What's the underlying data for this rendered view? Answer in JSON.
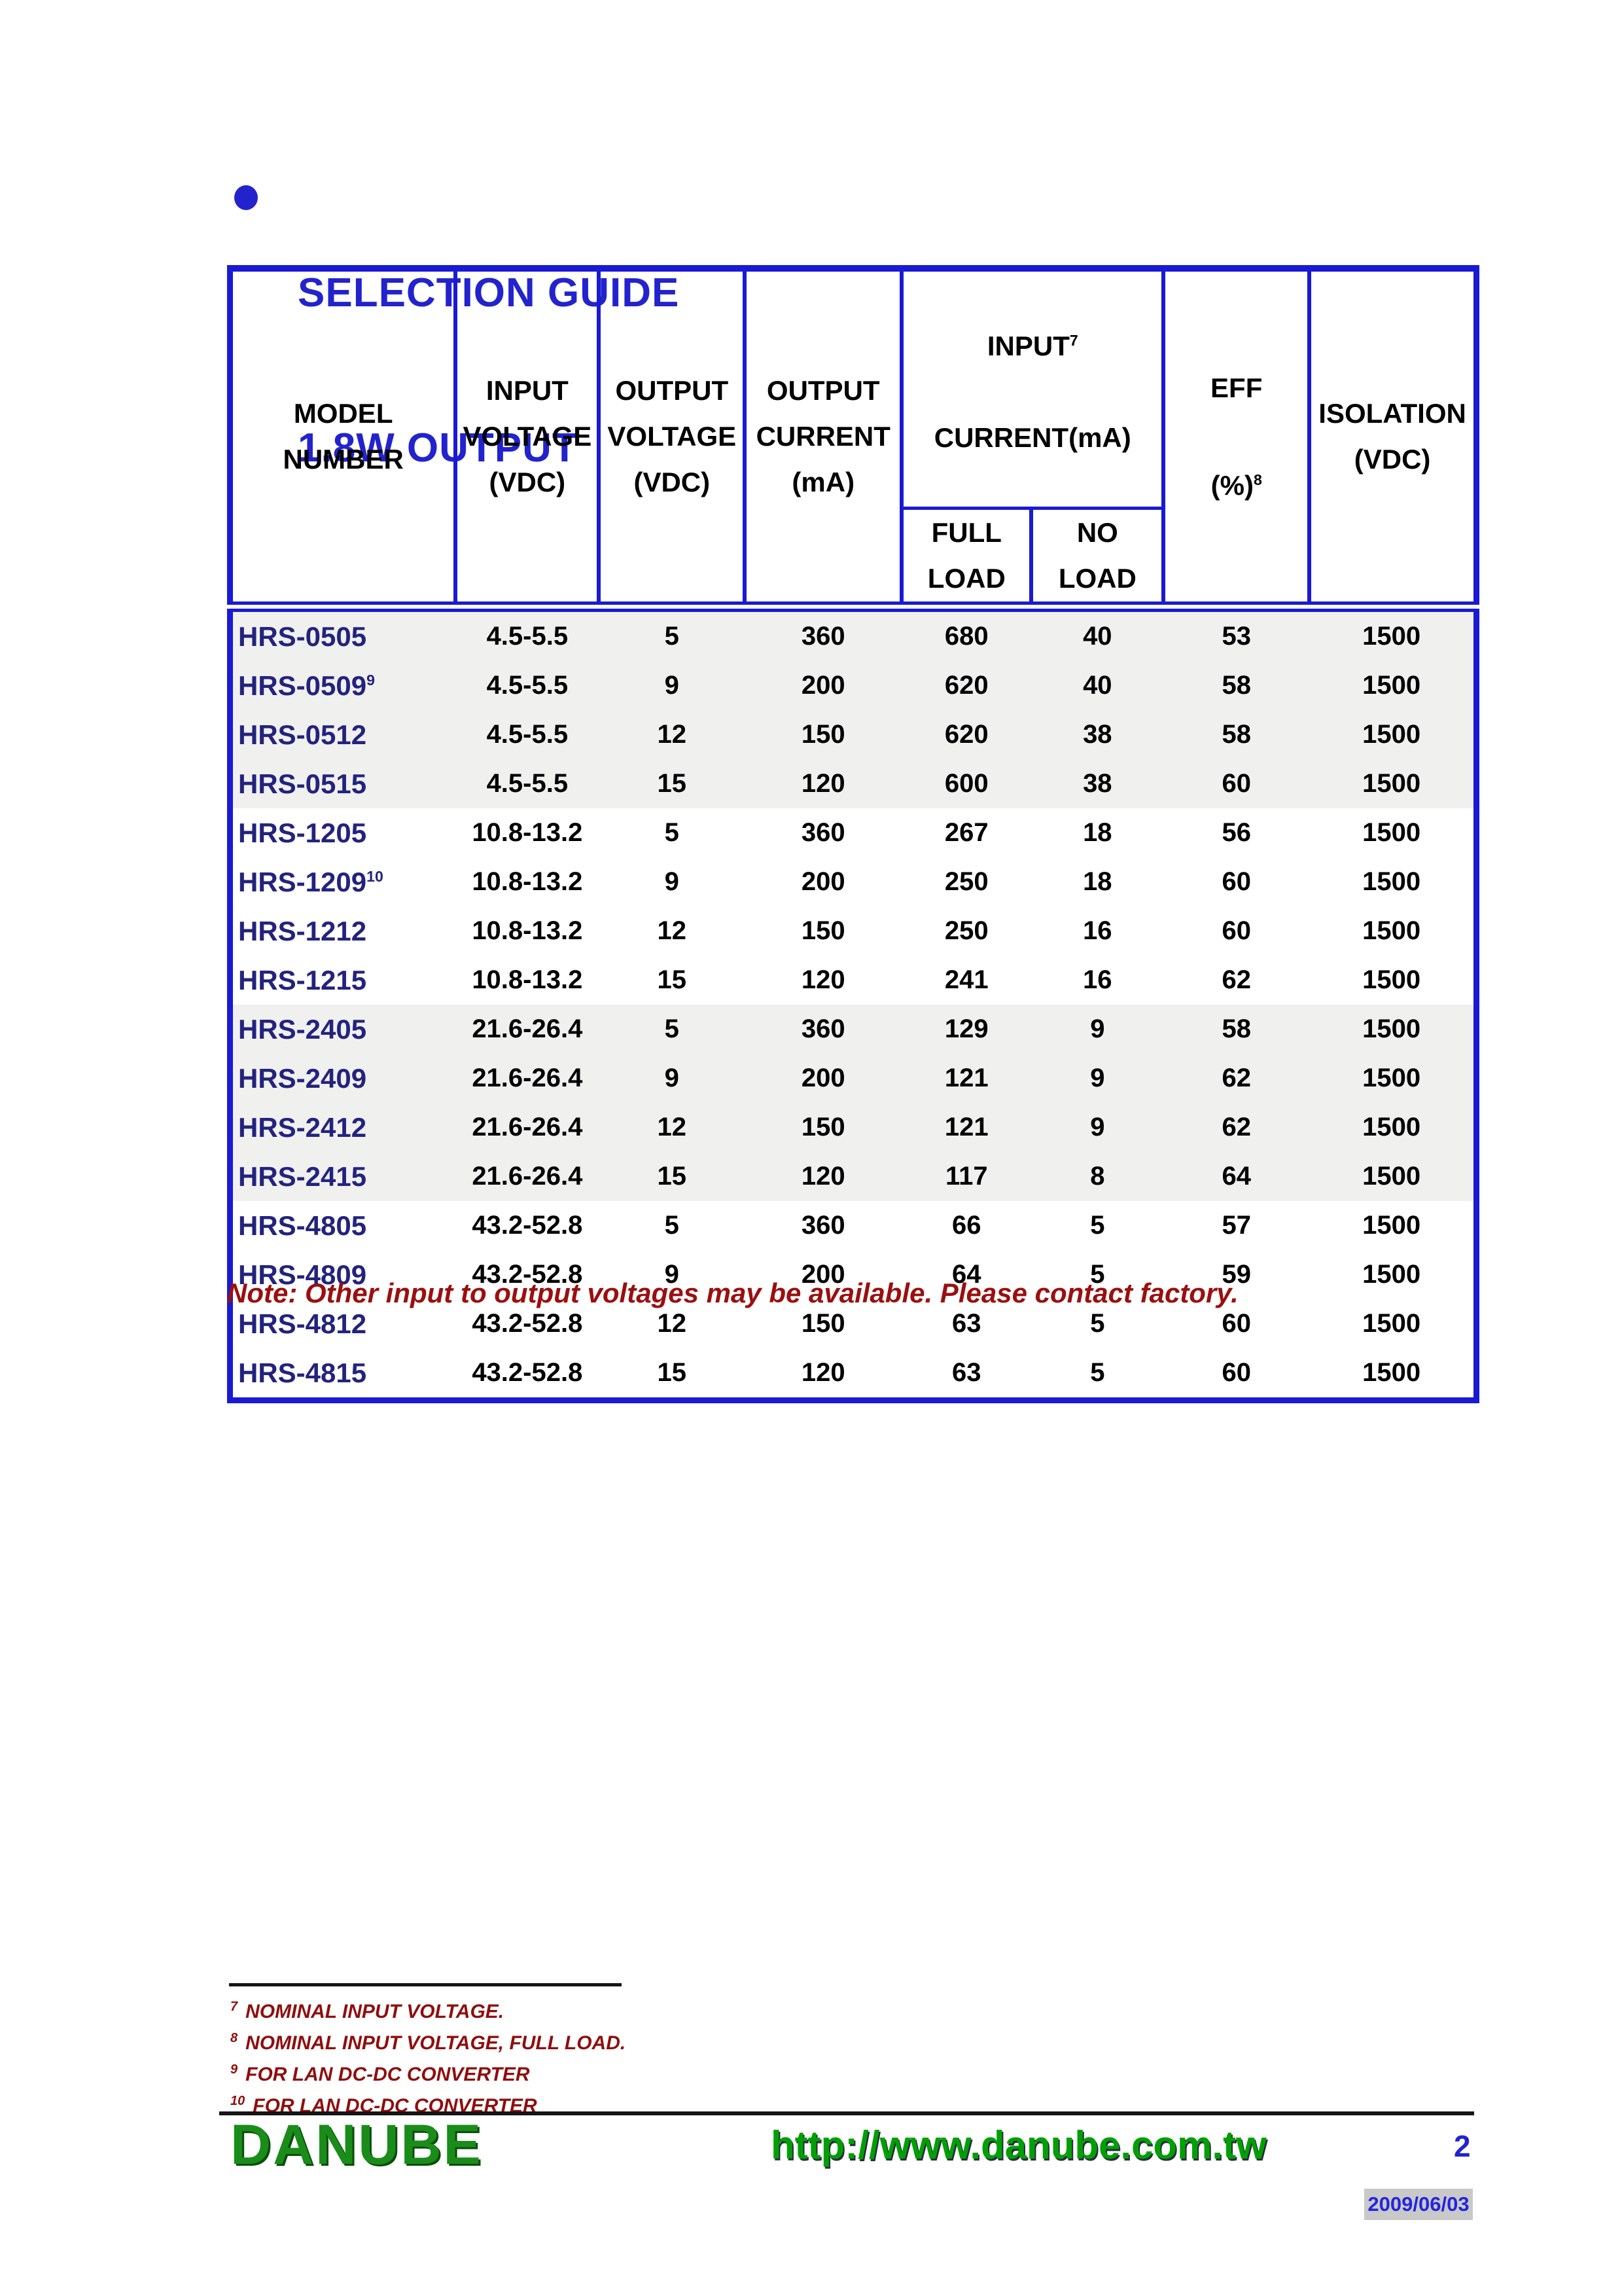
{
  "colors": {
    "accent_blue": "#2323CD",
    "table_border_blue": "#1A1AD4",
    "model_navy": "#23237E",
    "note_red": "#9B0F0F",
    "footnote_red": "#8F0E0E",
    "logo_green": "#1A8C1A",
    "url_green": "#00A005",
    "band_gray": "#F0F0EF",
    "date_badge_gray": "#C9C9C9"
  },
  "header": {
    "bullet_icon": "filled-circle",
    "title_line1": "SELECTION GUIDE",
    "title_line2": "1.8W OUTPUT"
  },
  "table": {
    "headers": {
      "model": "MODEL\nNUMBER",
      "input_voltage": "INPUT\nVOLTAGE\n(VDC)",
      "output_voltage": "OUTPUT\nVOLTAGE\n(VDC)",
      "output_current": "OUTPUT\nCURRENT\n(mA)",
      "input_current": {
        "line1": "INPUT",
        "sup": "7",
        "line2": "CURRENT(mA)"
      },
      "full_load": "FULL\nLOAD",
      "no_load": "NO\nLOAD",
      "eff": {
        "line1": "EFF",
        "line2": "(%)",
        "sup": "8"
      },
      "isolation": "ISOLATION\n(VDC)"
    },
    "rows": [
      {
        "model": "HRS-0505",
        "model_sup": "",
        "input_voltage": "4.5-5.5",
        "output_voltage": "5",
        "output_current": "360",
        "full_load": "680",
        "no_load": "40",
        "eff": "53",
        "isolation": "1500",
        "band": "gray"
      },
      {
        "model": "HRS-0509",
        "model_sup": "9",
        "input_voltage": "4.5-5.5",
        "output_voltage": "9",
        "output_current": "200",
        "full_load": "620",
        "no_load": "40",
        "eff": "58",
        "isolation": "1500",
        "band": "gray"
      },
      {
        "model": "HRS-0512",
        "model_sup": "",
        "input_voltage": "4.5-5.5",
        "output_voltage": "12",
        "output_current": "150",
        "full_load": "620",
        "no_load": "38",
        "eff": "58",
        "isolation": "1500",
        "band": "gray"
      },
      {
        "model": "HRS-0515",
        "model_sup": "",
        "input_voltage": "4.5-5.5",
        "output_voltage": "15",
        "output_current": "120",
        "full_load": "600",
        "no_load": "38",
        "eff": "60",
        "isolation": "1500",
        "band": "gray"
      },
      {
        "model": "HRS-1205",
        "model_sup": "",
        "input_voltage": "10.8-13.2",
        "output_voltage": "5",
        "output_current": "360",
        "full_load": "267",
        "no_load": "18",
        "eff": "56",
        "isolation": "1500",
        "band": "white"
      },
      {
        "model": "HRS-1209",
        "model_sup": "10",
        "input_voltage": "10.8-13.2",
        "output_voltage": "9",
        "output_current": "200",
        "full_load": "250",
        "no_load": "18",
        "eff": "60",
        "isolation": "1500",
        "band": "white"
      },
      {
        "model": "HRS-1212",
        "model_sup": "",
        "input_voltage": "10.8-13.2",
        "output_voltage": "12",
        "output_current": "150",
        "full_load": "250",
        "no_load": "16",
        "eff": "60",
        "isolation": "1500",
        "band": "white"
      },
      {
        "model": "HRS-1215",
        "model_sup": "",
        "input_voltage": "10.8-13.2",
        "output_voltage": "15",
        "output_current": "120",
        "full_load": "241",
        "no_load": "16",
        "eff": "62",
        "isolation": "1500",
        "band": "white"
      },
      {
        "model": "HRS-2405",
        "model_sup": "",
        "input_voltage": "21.6-26.4",
        "output_voltage": "5",
        "output_current": "360",
        "full_load": "129",
        "no_load": "9",
        "eff": "58",
        "isolation": "1500",
        "band": "gray"
      },
      {
        "model": "HRS-2409",
        "model_sup": "",
        "input_voltage": "21.6-26.4",
        "output_voltage": "9",
        "output_current": "200",
        "full_load": "121",
        "no_load": "9",
        "eff": "62",
        "isolation": "1500",
        "band": "gray"
      },
      {
        "model": "HRS-2412",
        "model_sup": "",
        "input_voltage": "21.6-26.4",
        "output_voltage": "12",
        "output_current": "150",
        "full_load": "121",
        "no_load": "9",
        "eff": "62",
        "isolation": "1500",
        "band": "gray"
      },
      {
        "model": "HRS-2415",
        "model_sup": "",
        "input_voltage": "21.6-26.4",
        "output_voltage": "15",
        "output_current": "120",
        "full_load": "117",
        "no_load": "8",
        "eff": "64",
        "isolation": "1500",
        "band": "gray"
      },
      {
        "model": "HRS-4805",
        "model_sup": "",
        "input_voltage": "43.2-52.8",
        "output_voltage": "5",
        "output_current": "360",
        "full_load": "66",
        "no_load": "5",
        "eff": "57",
        "isolation": "1500",
        "band": "white"
      },
      {
        "model": "HRS-4809",
        "model_sup": "",
        "input_voltage": "43.2-52.8",
        "output_voltage": "9",
        "output_current": "200",
        "full_load": "64",
        "no_load": "5",
        "eff": "59",
        "isolation": "1500",
        "band": "white"
      },
      {
        "model": "HRS-4812",
        "model_sup": "",
        "input_voltage": "43.2-52.8",
        "output_voltage": "12",
        "output_current": "150",
        "full_load": "63",
        "no_load": "5",
        "eff": "60",
        "isolation": "1500",
        "band": "white"
      },
      {
        "model": "HRS-4815",
        "model_sup": "",
        "input_voltage": "43.2-52.8",
        "output_voltage": "15",
        "output_current": "120",
        "full_load": "63",
        "no_load": "5",
        "eff": "60",
        "isolation": "1500",
        "band": "white"
      }
    ]
  },
  "note": "Note: Other input to output voltages may be available. Please contact factory.",
  "footnotes": [
    {
      "sup": "7",
      "text": "NOMINAL INPUT VOLTAGE."
    },
    {
      "sup": "8",
      "text": "NOMINAL INPUT VOLTAGE, FULL LOAD."
    },
    {
      "sup": "9",
      "text": "FOR LAN DC-DC CONVERTER"
    },
    {
      "sup": "10",
      "text": "FOR LAN DC-DC CONVERTER"
    }
  ],
  "footer": {
    "logo": "DANUBE",
    "url": "http://www.danube.com.tw",
    "page_number": "2",
    "date": "2009/06/03"
  }
}
